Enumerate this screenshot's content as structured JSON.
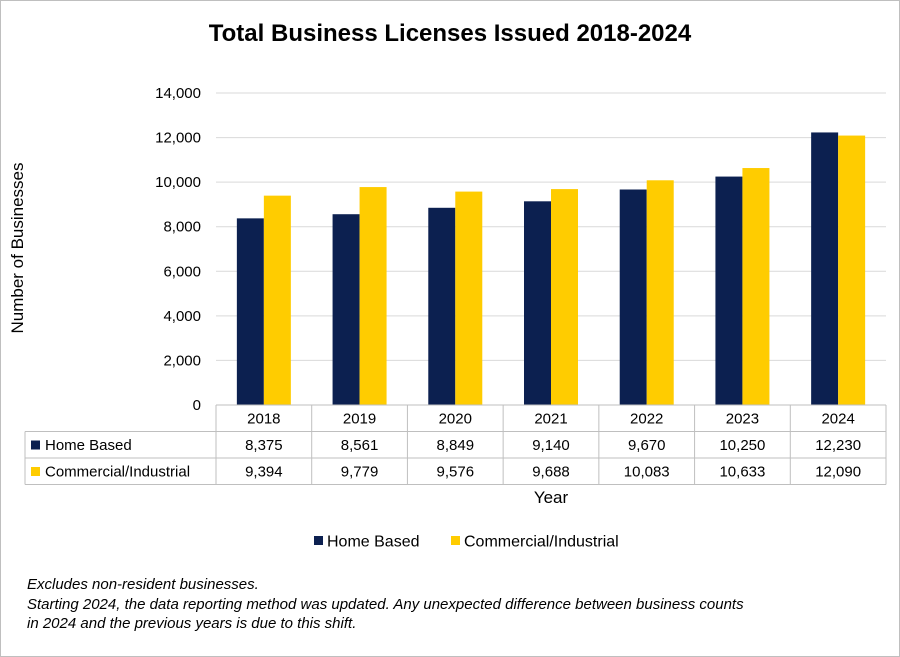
{
  "chart_data": {
    "type": "bar",
    "title": "Total Business Licenses Issued 2018-2024",
    "xlabel": "Year",
    "ylabel": "Number of Businesses",
    "ylim": [
      0,
      14000
    ],
    "yticks": [
      "0",
      "2,000",
      "4,000",
      "6,000",
      "8,000",
      "10,000",
      "12,000",
      "14,000"
    ],
    "ytick_values": [
      0,
      2000,
      4000,
      6000,
      8000,
      10000,
      12000,
      14000
    ],
    "grid": true,
    "legend_position": "bottom",
    "categories": [
      "2018",
      "2019",
      "2020",
      "2021",
      "2022",
      "2023",
      "2024"
    ],
    "series": [
      {
        "name": "Home Based",
        "color": "#0c2050",
        "values": [
          8375,
          8561,
          8849,
          9140,
          9670,
          10250,
          12230
        ],
        "labels": [
          "8,375",
          "8,561",
          "8,849",
          "9,140",
          "9,670",
          "10,250",
          "12,230"
        ]
      },
      {
        "name": "Commercial/Industrial",
        "color": "#ffcc00",
        "values": [
          9394,
          9779,
          9576,
          9688,
          10083,
          10633,
          12090
        ],
        "labels": [
          "9,394",
          "9,779",
          "9,576",
          "9,688",
          "10,083",
          "10,633",
          "12,090"
        ]
      }
    ]
  },
  "notes": {
    "line1": "Excludes non-resident businesses.",
    "line2": "Starting 2024, the data reporting method was updated. Any unexpected difference between business counts",
    "line3": "in 2024 and the previous years is due to this shift."
  }
}
